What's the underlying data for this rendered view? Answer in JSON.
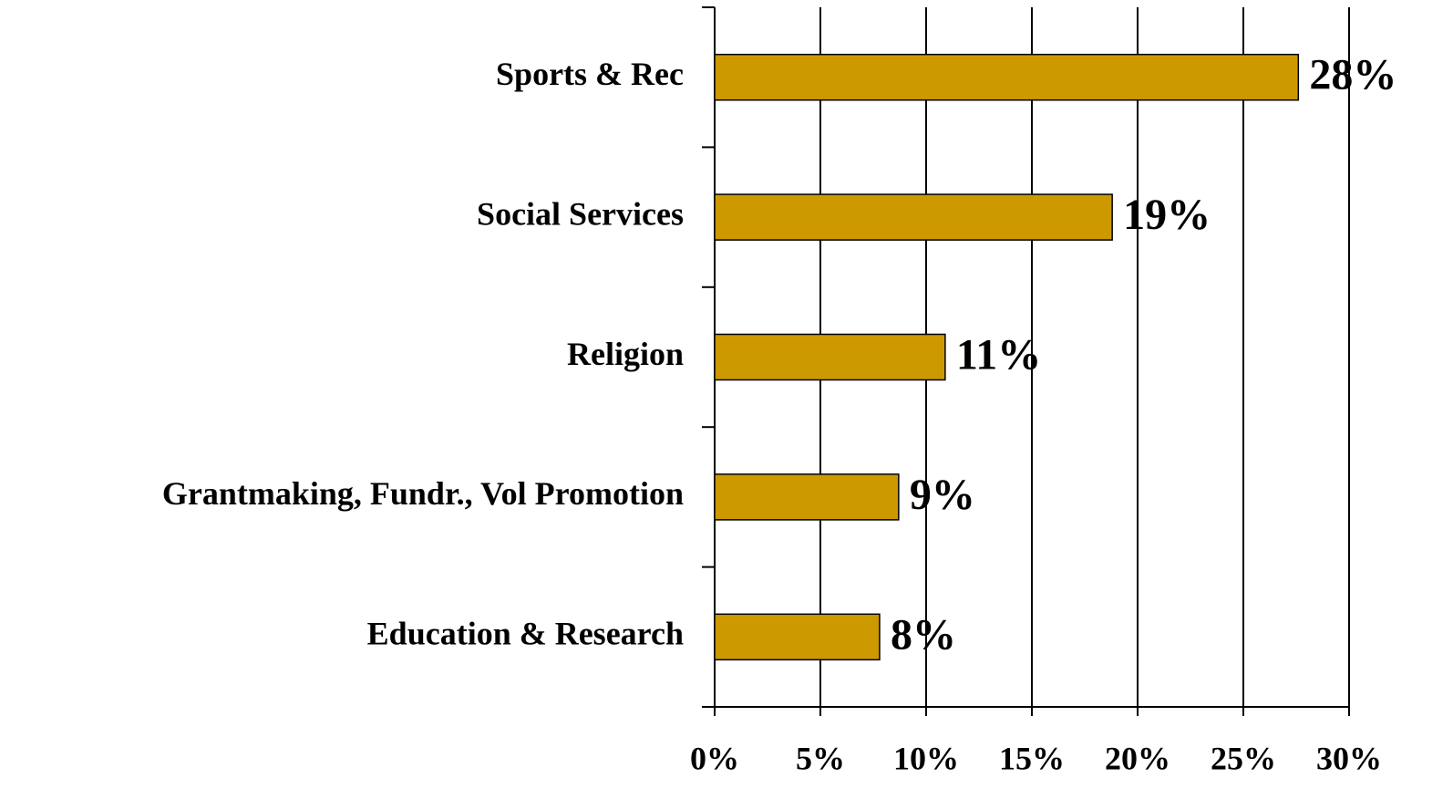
{
  "chart_data": {
    "type": "hbar",
    "categories": [
      "Sports & Rec",
      "Social Services",
      "Religion",
      "Grantmaking, Fundr., Vol Promotion",
      "Education & Research"
    ],
    "values": [
      27.6,
      18.8,
      10.9,
      8.7,
      7.8
    ],
    "value_labels": [
      "28%",
      "19%",
      "11%",
      "9%",
      "8%"
    ],
    "color": "#cc9900",
    "xlim": [
      0,
      30
    ],
    "xticks": [
      {
        "value": 0,
        "label": "0%"
      },
      {
        "value": 5,
        "label": "5%"
      },
      {
        "value": 10,
        "label": "10%"
      },
      {
        "value": 15,
        "label": "15%"
      },
      {
        "value": 20,
        "label": "20%"
      },
      {
        "value": 25,
        "label": "25%"
      },
      {
        "value": 30,
        "label": "30%"
      }
    ],
    "grid": true
  }
}
